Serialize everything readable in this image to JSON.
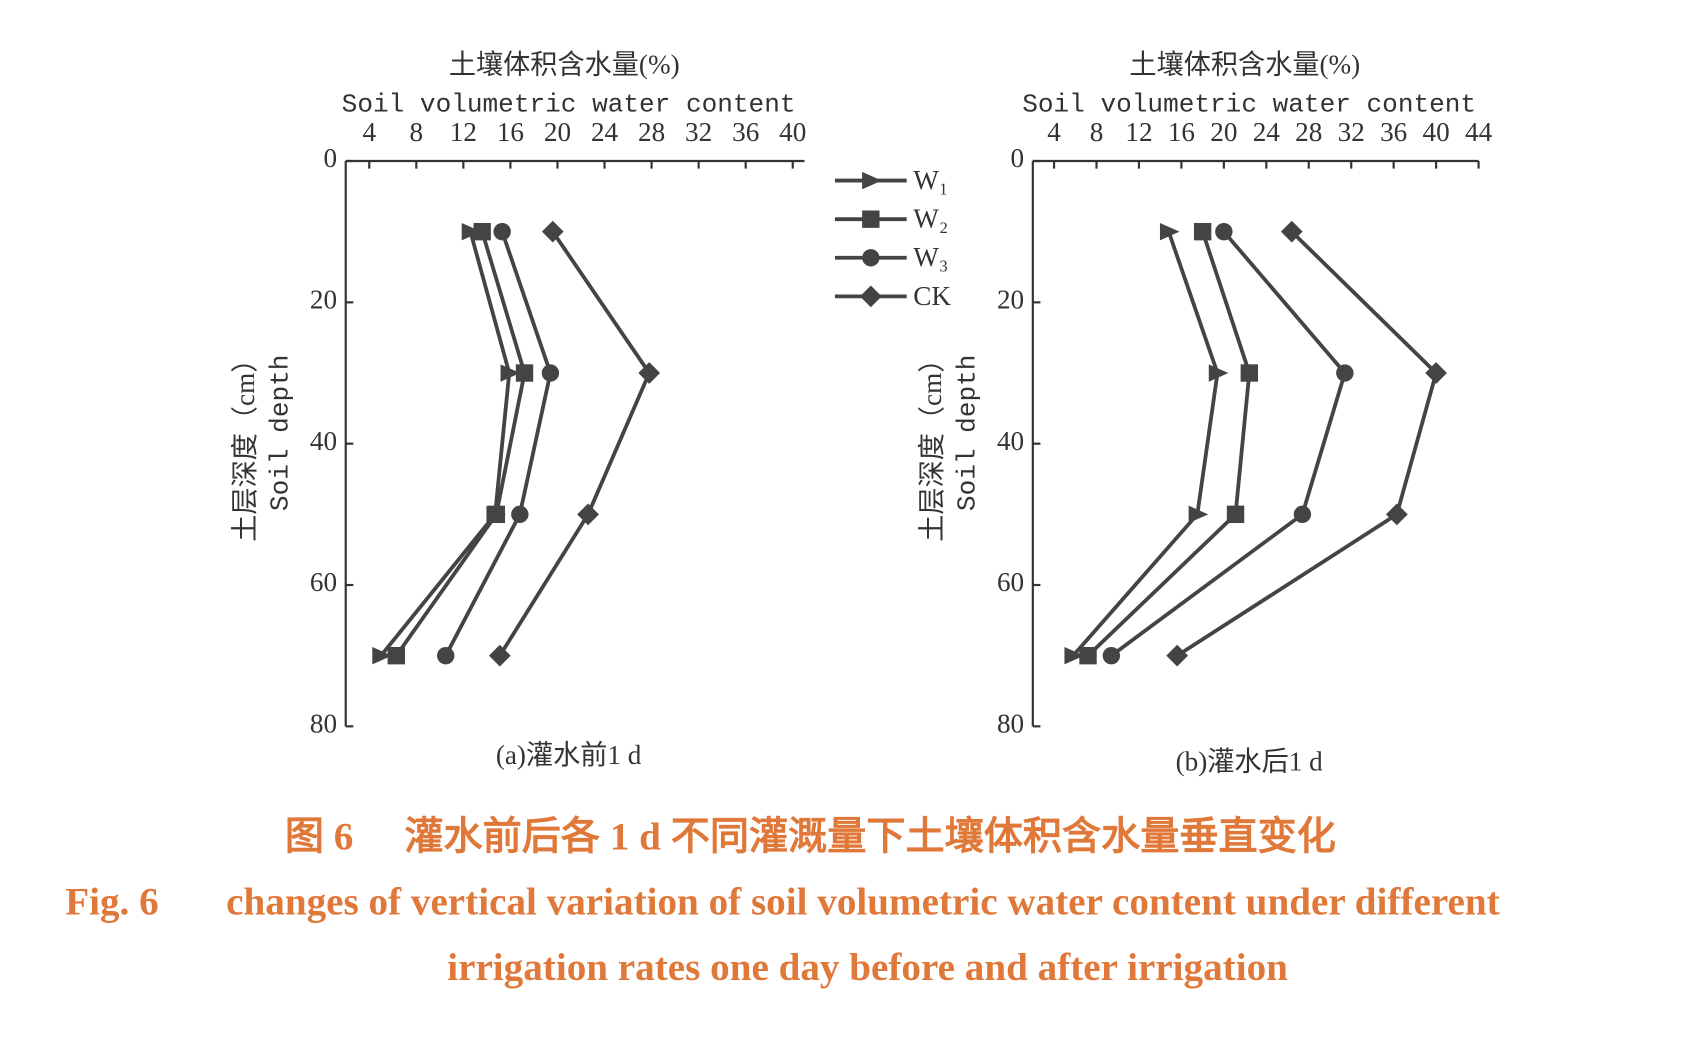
{
  "chart_data": [
    {
      "type": "line",
      "xlabel": [
        "土壤体积含水量(%)",
        "Soil volumetric water content"
      ],
      "ylabel": [
        "土层深度（cm）",
        "Soil depth"
      ],
      "subtitle": "(a)灌水前1 d",
      "y": [
        10,
        30,
        50,
        70
      ],
      "ylim": [
        0,
        80
      ],
      "yticks": [
        0,
        20,
        40,
        60,
        80
      ],
      "y_reversed": true,
      "xlim": [
        2,
        41
      ],
      "xticks": [
        4,
        8,
        12,
        16,
        20,
        24,
        28,
        32,
        36,
        40
      ],
      "x_axis_position": "top",
      "legend": "right",
      "series": [
        {
          "name": "W₁",
          "color": "#444444",
          "marker": "triangle",
          "values": [
            12.6,
            15.9,
            14.7,
            5.0
          ]
        },
        {
          "name": "W₂",
          "color": "#444444",
          "marker": "square",
          "values": [
            13.6,
            17.2,
            14.8,
            6.3
          ]
        },
        {
          "name": "W₃",
          "color": "#444444",
          "marker": "circle",
          "values": [
            15.3,
            19.4,
            16.8,
            10.5
          ]
        },
        {
          "name": "CK",
          "color": "#444444",
          "marker": "diamond",
          "values": [
            19.6,
            27.8,
            22.6,
            15.1
          ]
        }
      ]
    },
    {
      "type": "line",
      "xlabel": [
        "土壤体积含水量(%)",
        "Soil volumetric water content"
      ],
      "ylabel": [
        "土层深度（cm）",
        "Soil depth"
      ],
      "subtitle": "(b)灌水后1 d",
      "y": [
        10,
        30,
        50,
        70
      ],
      "ylim": [
        0,
        80
      ],
      "yticks": [
        0,
        20,
        40,
        60,
        80
      ],
      "y_reversed": true,
      "xlim": [
        2,
        44
      ],
      "xticks": [
        4,
        8,
        12,
        16,
        20,
        24,
        28,
        32,
        36,
        40,
        44
      ],
      "x_axis_position": "top",
      "series": [
        {
          "color": "#444444",
          "marker": "triangle",
          "values": [
            14.8,
            19.4,
            17.5,
            5.8
          ]
        },
        {
          "color": "#444444",
          "marker": "square",
          "values": [
            18.0,
            22.4,
            21.1,
            7.2
          ]
        },
        {
          "color": "#444444",
          "marker": "circle",
          "values": [
            20.0,
            31.4,
            27.4,
            9.4
          ]
        },
        {
          "color": "#444444",
          "marker": "diamond",
          "values": [
            26.4,
            40.0,
            36.3,
            15.6
          ]
        }
      ]
    }
  ],
  "caption": {
    "figure_cn": "图 6",
    "title_cn": "灌水前后各 1 d 不同灌溉量下土壤体积含水量垂直变化",
    "figure_en": "Fig. 6",
    "title_en": [
      "changes of vertical variation of soil volumetric water content under different",
      "irrigation rates one day before and after irrigation"
    ]
  }
}
